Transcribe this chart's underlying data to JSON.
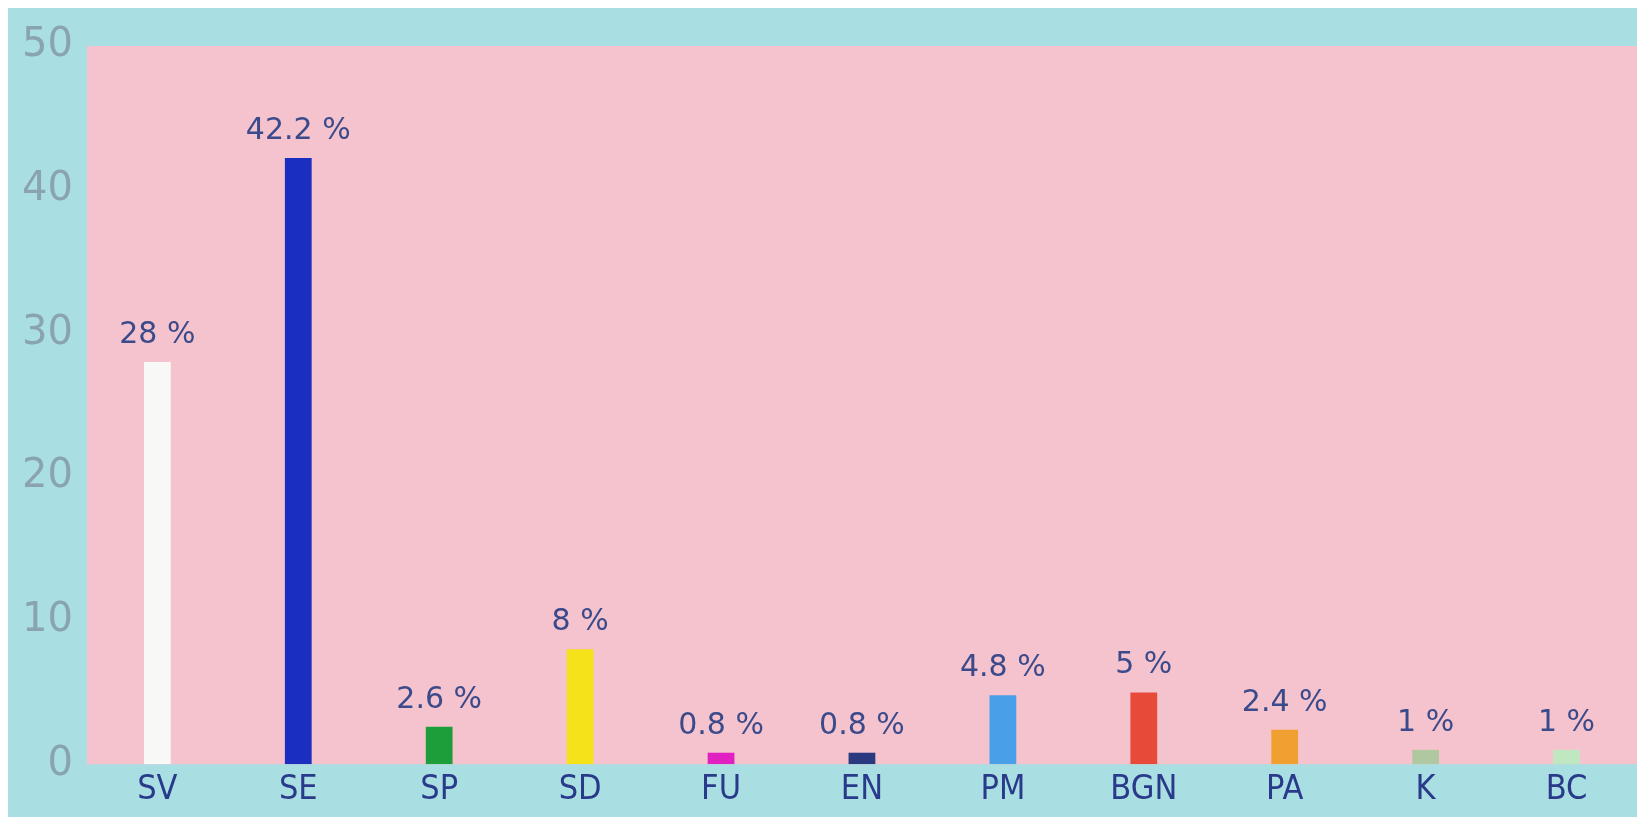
{
  "chart_data": {
    "type": "bar",
    "categories": [
      "SV",
      "SE",
      "SP",
      "SD",
      "FU",
      "EN",
      "PM",
      "BGN",
      "PA",
      "K",
      "BC"
    ],
    "values": [
      28,
      42.2,
      2.6,
      8,
      0.8,
      0.8,
      4.8,
      5,
      2.4,
      1,
      1
    ],
    "value_labels": [
      "28 %",
      "42.2 %",
      "2.6 %",
      "8 %",
      "0.8 %",
      "0.8 %",
      "4.8 %",
      "5 %",
      "2.4 %",
      "1 %",
      "1 %"
    ],
    "colors": [
      "#f8f8f6",
      "#1a2fbf",
      "#1e9e3a",
      "#f5e21b",
      "#e020c0",
      "#2a3a80",
      "#4aa0e8",
      "#e84a3a",
      "#f0a030",
      "#b0c8a0",
      "#c0e8c0"
    ],
    "ylim": [
      0,
      50
    ],
    "yticks": [
      0,
      10,
      20,
      30,
      40,
      50
    ]
  }
}
